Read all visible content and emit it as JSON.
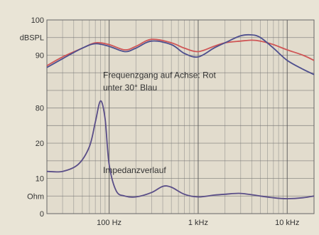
{
  "chart_data": {
    "type": "line",
    "x_scale": "log",
    "x_range_hz": [
      20,
      20000
    ],
    "grid": true,
    "colors": {
      "background": "#e9e4d6",
      "plot_background": "#e2dccd",
      "red_series": "#cf5656",
      "blue_series": "#4e4f8e",
      "impedance_series": "#5a4e88"
    },
    "y_ticks": [
      {
        "label": "100",
        "row": 0
      },
      {
        "label": "dBSPL",
        "row": 1
      },
      {
        "label": "90",
        "row": 2
      },
      {
        "label": "80",
        "row": 5
      },
      {
        "label": "20",
        "row": 7
      },
      {
        "label": "10",
        "row": 9
      },
      {
        "label": "Ohm",
        "row": 10
      },
      {
        "label": "0",
        "row": 11
      }
    ],
    "x_ticks": [
      {
        "label": "100 Hz",
        "value": 100
      },
      {
        "label": "1 kHz",
        "value": 1000
      },
      {
        "label": "10 kHz",
        "value": 10000
      }
    ],
    "annotations": [
      {
        "text": "Frequenzgang auf Achse: Rot",
        "x": 145,
        "y_row": 3.3
      },
      {
        "text": "unter 30° Blau",
        "x": 145,
        "y_row": 4.0
      },
      {
        "text": "Impedanzverlauf",
        "x": 145,
        "y_row": 8.7
      }
    ],
    "series": [
      {
        "color": "red",
        "x": [
          20,
          30,
          50,
          70,
          100,
          150,
          200,
          300,
          500,
          700,
          1000,
          1500,
          2000,
          3000,
          4000,
          5000,
          7000,
          10000,
          15000,
          20000
        ],
        "y_row": [
          2.6,
          2.1,
          1.6,
          1.3,
          1.4,
          1.7,
          1.5,
          1.1,
          1.3,
          1.6,
          1.8,
          1.5,
          1.3,
          1.2,
          1.15,
          1.2,
          1.4,
          1.7,
          2.0,
          2.3
        ]
      },
      {
        "color": "blue",
        "x": [
          20,
          30,
          50,
          70,
          100,
          150,
          200,
          300,
          500,
          700,
          1000,
          1500,
          2000,
          3000,
          4000,
          5000,
          7000,
          10000,
          15000,
          20000
        ],
        "y_row": [
          2.7,
          2.2,
          1.6,
          1.35,
          1.5,
          1.8,
          1.6,
          1.2,
          1.4,
          1.9,
          2.1,
          1.6,
          1.3,
          0.9,
          0.85,
          1.0,
          1.6,
          2.3,
          2.8,
          3.1
        ]
      },
      {
        "color": "impedance",
        "x": [
          20,
          30,
          45,
          60,
          70,
          80,
          90,
          100,
          120,
          150,
          200,
          300,
          400,
          500,
          700,
          1000,
          1500,
          2000,
          3000,
          5000,
          7000,
          10000,
          15000,
          20000
        ],
        "y_row": [
          8.6,
          8.6,
          8.2,
          7.2,
          5.8,
          4.6,
          5.6,
          8.2,
          9.7,
          10.0,
          10.05,
          9.8,
          9.45,
          9.5,
          9.9,
          10.05,
          9.95,
          9.9,
          9.85,
          10.0,
          10.1,
          10.15,
          10.1,
          10.0
        ]
      }
    ]
  }
}
